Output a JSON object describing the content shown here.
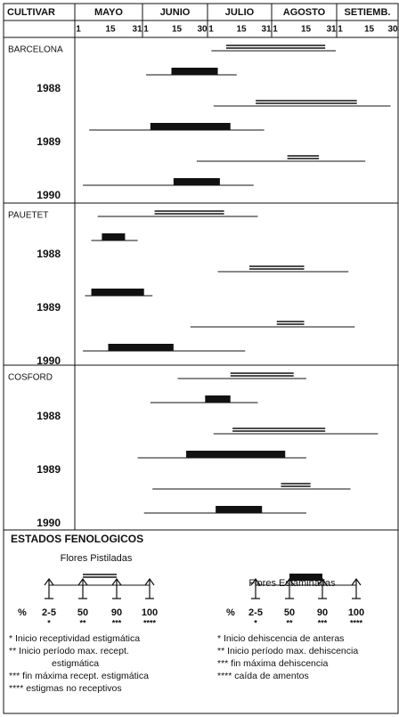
{
  "header": {
    "cultivar_label": "CULTIVAR",
    "months": [
      {
        "name": "MAYO",
        "days": [
          "1",
          "15",
          "31"
        ]
      },
      {
        "name": "JUNIO",
        "days": [
          "1",
          "15",
          "30"
        ]
      },
      {
        "name": "JULIO",
        "days": [
          "1",
          "15",
          "31"
        ]
      },
      {
        "name": "AGOSTO",
        "days": [
          "1",
          "15",
          "31"
        ]
      },
      {
        "name": "SETIEMB.",
        "days": [
          "1",
          "15",
          "30"
        ]
      }
    ]
  },
  "xlim": [
    0,
    153
  ],
  "cultivars": [
    {
      "name": "BARCELONA",
      "years": [
        {
          "year": "1988",
          "pistillate": {
            "range": [
              64,
              123
            ],
            "peak": [
              71,
              118
            ]
          },
          "staminate": {
            "range": [
              33,
              76
            ],
            "peak": [
              45,
              67
            ]
          }
        },
        {
          "year": "1989",
          "pistillate": {
            "range": [
              65,
              149
            ],
            "peak": [
              85,
              133
            ]
          },
          "staminate": {
            "range": [
              6,
              89
            ],
            "peak": [
              35,
              73
            ]
          }
        },
        {
          "year": "1990",
          "pistillate": {
            "range": [
              57,
              137
            ],
            "peak": [
              100,
              115
            ]
          },
          "staminate": {
            "range": [
              3,
              84
            ],
            "peak": [
              46,
              68
            ]
          }
        }
      ]
    },
    {
      "name": "PAUETET",
      "years": [
        {
          "year": "1988",
          "pistillate": {
            "range": [
              10,
              86
            ],
            "peak": [
              37,
              70
            ]
          },
          "staminate": {
            "range": [
              7,
              29
            ],
            "peak": [
              12,
              23
            ]
          }
        },
        {
          "year": "1989",
          "pistillate": {
            "range": [
              67,
              129
            ],
            "peak": [
              82,
              108
            ]
          },
          "staminate": {
            "range": [
              4,
              36
            ],
            "peak": [
              7,
              32
            ]
          }
        },
        {
          "year": "1990",
          "pistillate": {
            "range": [
              54,
              132
            ],
            "peak": [
              95,
              108
            ]
          },
          "staminate": {
            "range": [
              3,
              80
            ],
            "peak": [
              15,
              46
            ]
          }
        }
      ]
    },
    {
      "name": "COSFORD",
      "years": [
        {
          "year": "1988",
          "pistillate": {
            "range": [
              48,
              109
            ],
            "peak": [
              73,
              103
            ]
          },
          "staminate": {
            "range": [
              35,
              86
            ],
            "peak": [
              61,
              73
            ]
          }
        },
        {
          "year": "1989",
          "pistillate": {
            "range": [
              65,
              143
            ],
            "peak": [
              74,
              118
            ]
          },
          "staminate": {
            "range": [
              29,
              109
            ],
            "peak": [
              52,
              99
            ]
          }
        },
        {
          "year": "1990",
          "pistillate": {
            "range": [
              36,
              130
            ],
            "peak": [
              97,
              111
            ]
          },
          "staminate": {
            "range": [
              32,
              109
            ],
            "peak": [
              66,
              88
            ]
          }
        }
      ]
    }
  ],
  "legend": {
    "title": "ESTADOS FENOLOGICOS",
    "pistillate": {
      "title": "Flores Pistiladas",
      "percent_label": "%",
      "stages": [
        "2-5",
        "50",
        "90",
        "100"
      ],
      "stars": [
        "*",
        "**",
        "***",
        "****"
      ],
      "notes": [
        "* Inicio receptividad estigmática",
        "** Inicio período max. recept.",
        "estigmática",
        "*** fin máxima recept. estigmática",
        "**** estigmas no receptivos"
      ]
    },
    "staminate": {
      "title": "Flores Estaminadas",
      "percent_label": "%",
      "stages": [
        "2-5",
        "50",
        "90",
        "100"
      ],
      "stars": [
        "*",
        "**",
        "***",
        "****"
      ],
      "notes": [
        "* Inicio dehiscencia de anteras",
        "** Inicio período max. dehiscencia",
        "*** fin máxima dehiscencia",
        "**** caída de amentos"
      ]
    }
  }
}
